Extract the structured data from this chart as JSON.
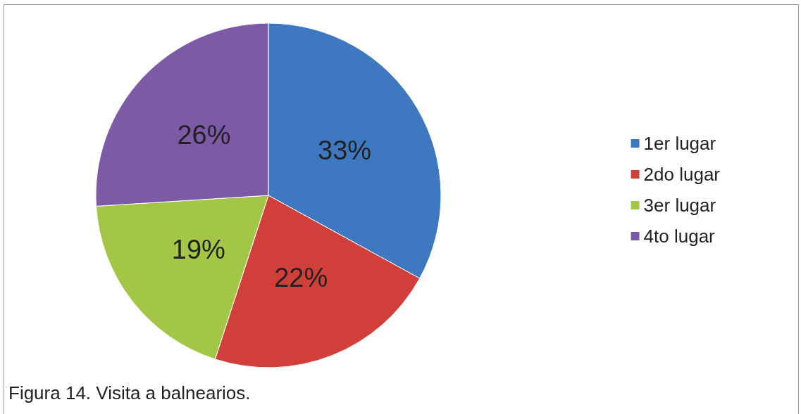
{
  "chart_data": {
    "type": "pie",
    "categories": [
      "1er lugar",
      "2do lugar",
      "3er lugar",
      "4to lugar"
    ],
    "values": [
      33,
      22,
      19,
      26
    ],
    "colors": [
      "#3d78c0",
      "#d13f3b",
      "#a3c647",
      "#7d5aa6"
    ],
    "value_labels": [
      "33%",
      "22%",
      "19%",
      "26%"
    ],
    "legend": "right",
    "annotations": [
      "Figura 14. Visita a balnearios."
    ]
  }
}
